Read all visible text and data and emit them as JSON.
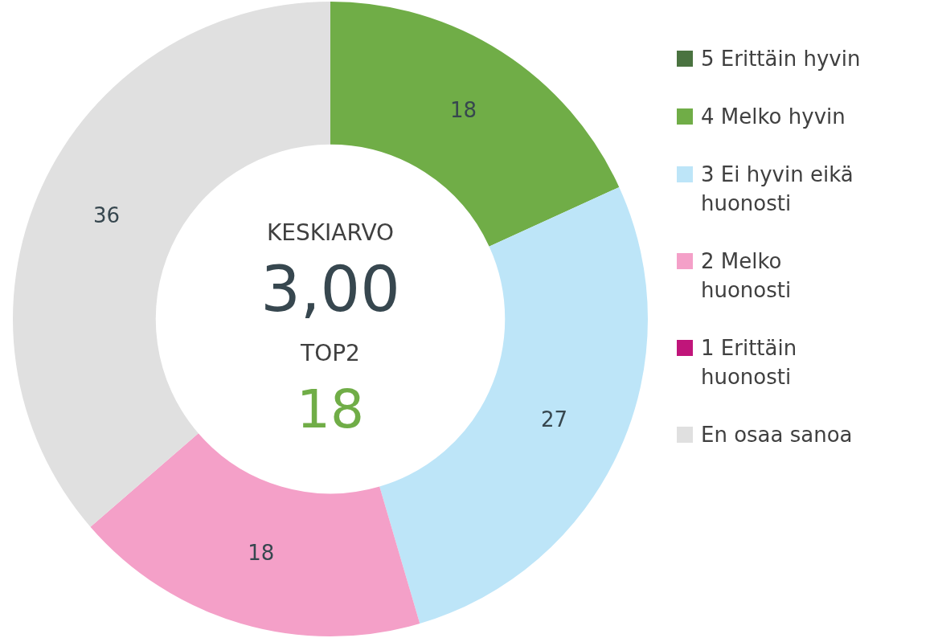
{
  "chart_data": {
    "type": "donut",
    "categories": [
      "5 Erittäin hyvin",
      "4 Melko hyvin",
      "3 Ei hyvin eikä huonosti",
      "2 Melko huonosti",
      "1 Erittäin huonosti",
      "En osaa sanoa"
    ],
    "values": [
      0,
      18,
      27,
      18,
      0,
      36
    ],
    "colors": [
      "#4a7340",
      "#70ad47",
      "#bde5f8",
      "#f4a0c8",
      "#c0157a",
      "#e0e0e0"
    ],
    "value_labels": [
      null,
      "18",
      "27",
      "18",
      null,
      "36"
    ],
    "annotations": [
      "KESKIARVO",
      "3,00",
      "TOP2",
      "18"
    ],
    "legend": "right"
  }
}
